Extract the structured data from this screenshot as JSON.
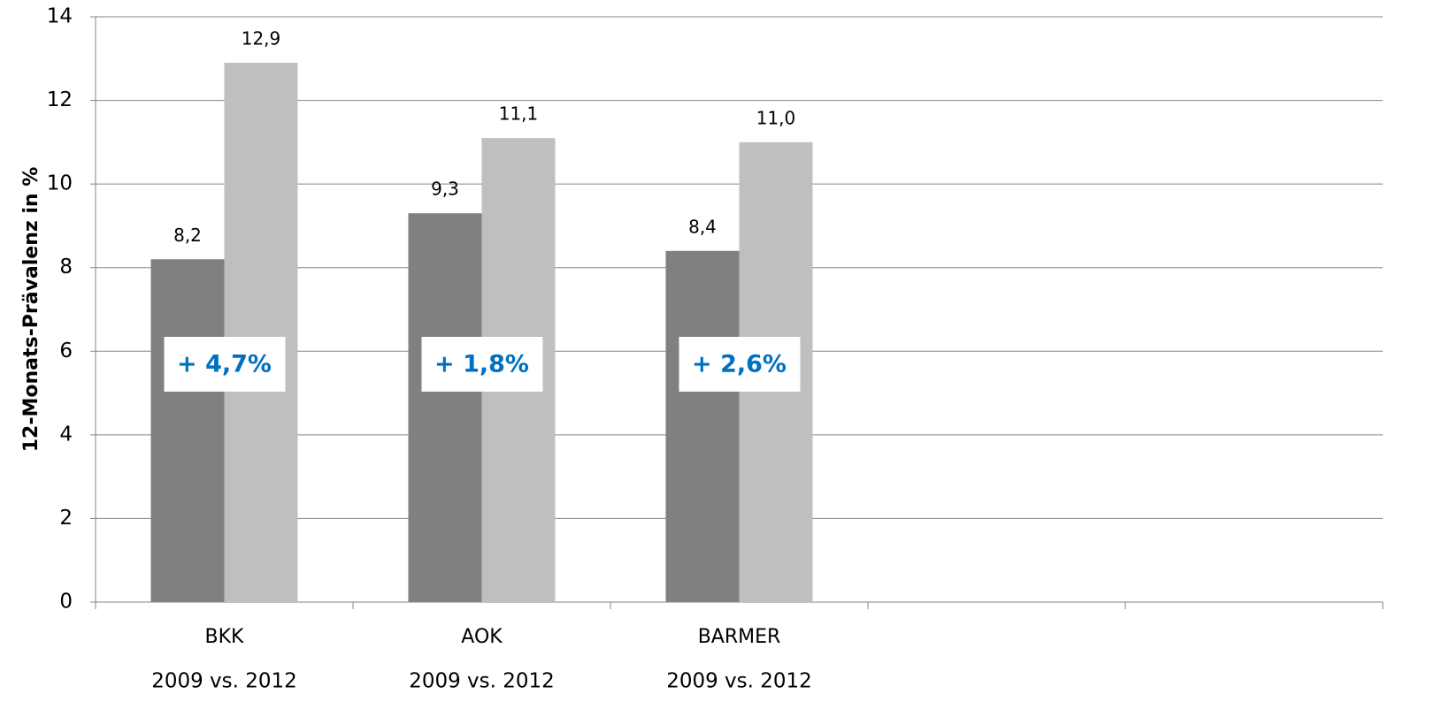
{
  "chart_data": {
    "type": "bar",
    "y_label": "12-Monats-Prävalenz in %",
    "categories": [
      "BKK",
      "AOK",
      "BARMER",
      null,
      null
    ],
    "category_sublabels": [
      "2009 vs. 2012",
      "2009 vs. 2012",
      "2009 vs. 2012",
      null,
      null
    ],
    "series": [
      {
        "color": "#808080",
        "values": [
          8.2,
          9.3,
          8.4,
          null,
          null
        ],
        "value_labels": [
          "8,2",
          "9,3",
          "8,4",
          null,
          null
        ]
      },
      {
        "color": "#bfbfbf",
        "values": [
          12.9,
          11.1,
          11.0,
          null,
          null
        ],
        "value_labels": [
          "12,9",
          "11,1",
          "11,0",
          null,
          null
        ]
      }
    ],
    "annotations": [
      "+ 4,7%",
      "+ 1,8%",
      "+ 2,6%"
    ],
    "annotation_color": "#0070c0",
    "ylim": [
      0,
      14
    ],
    "yticks": [
      0,
      2,
      4,
      6,
      8,
      10,
      12,
      14
    ],
    "grid": true
  }
}
